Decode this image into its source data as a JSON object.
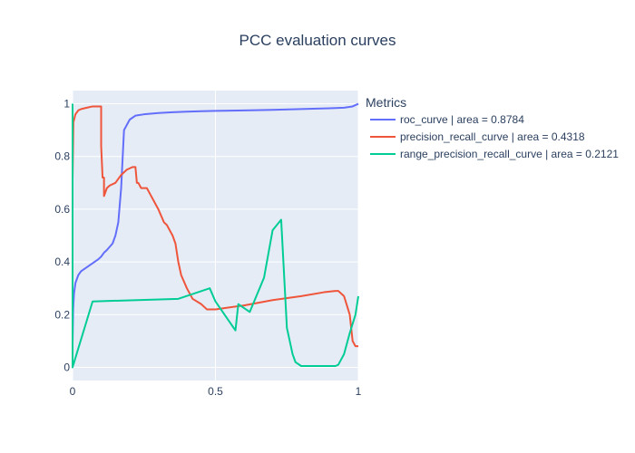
{
  "chart_data": {
    "type": "line",
    "title": "PCC evaluation curves",
    "xlabel": "",
    "ylabel": "",
    "xlim": [
      0,
      1
    ],
    "ylim": [
      -0.05,
      1.05
    ],
    "x_ticks": [
      0,
      0.5,
      1
    ],
    "x_tick_labels": [
      "0",
      "0.5",
      "1"
    ],
    "y_ticks": [
      0,
      0.2,
      0.4,
      0.6,
      0.8,
      1
    ],
    "y_tick_labels": [
      "0",
      "0.2",
      "0.4",
      "0.6",
      "0.8",
      "1"
    ],
    "grid": true,
    "legend_title": "Metrics",
    "legend_position": "top-right",
    "series": [
      {
        "name": "roc_curve | area = 0.8784",
        "color": "#636efa",
        "x": [
          0,
          0.002,
          0.005,
          0.01,
          0.02,
          0.03,
          0.05,
          0.07,
          0.09,
          0.1,
          0.11,
          0.12,
          0.14,
          0.15,
          0.16,
          0.17,
          0.18,
          0.2,
          0.22,
          0.25,
          0.3,
          0.35,
          0.4,
          0.45,
          0.5,
          0.6,
          0.7,
          0.8,
          0.9,
          0.95,
          0.98,
          1.0
        ],
        "y": [
          0.09,
          0.22,
          0.28,
          0.32,
          0.35,
          0.365,
          0.38,
          0.395,
          0.41,
          0.42,
          0.435,
          0.445,
          0.47,
          0.5,
          0.55,
          0.68,
          0.9,
          0.94,
          0.955,
          0.96,
          0.965,
          0.968,
          0.97,
          0.972,
          0.973,
          0.975,
          0.977,
          0.98,
          0.983,
          0.985,
          0.99,
          1.0
        ]
      },
      {
        "name": "precision_recall_curve | area = 0.4318",
        "color": "#ef553b",
        "x": [
          0,
          0.003,
          0.01,
          0.02,
          0.03,
          0.05,
          0.07,
          0.1,
          0.1,
          0.105,
          0.11,
          0.11,
          0.12,
          0.13,
          0.15,
          0.17,
          0.19,
          0.21,
          0.22,
          0.225,
          0.23,
          0.24,
          0.26,
          0.27,
          0.28,
          0.29,
          0.3,
          0.32,
          0.33,
          0.35,
          0.36,
          0.37,
          0.38,
          0.4,
          0.42,
          0.45,
          0.47,
          0.5,
          0.6,
          0.7,
          0.8,
          0.88,
          0.92,
          0.93,
          0.95,
          0.97,
          0.98,
          0.99,
          1.0
        ],
        "y": [
          0.71,
          0.93,
          0.96,
          0.975,
          0.98,
          0.985,
          0.99,
          0.99,
          0.84,
          0.72,
          0.72,
          0.65,
          0.68,
          0.69,
          0.7,
          0.73,
          0.75,
          0.76,
          0.76,
          0.7,
          0.7,
          0.68,
          0.68,
          0.66,
          0.64,
          0.62,
          0.6,
          0.55,
          0.54,
          0.5,
          0.47,
          0.4,
          0.35,
          0.3,
          0.26,
          0.24,
          0.22,
          0.22,
          0.235,
          0.255,
          0.27,
          0.285,
          0.29,
          0.29,
          0.27,
          0.2,
          0.1,
          0.08,
          0.08
        ]
      },
      {
        "name": "range_precision_recall_curve | area = 0.2121",
        "color": "#00cc96",
        "x": [
          0,
          0,
          0.07,
          0.37,
          0.48,
          0.5,
          0.57,
          0.58,
          0.62,
          0.67,
          0.7,
          0.73,
          0.75,
          0.77,
          0.78,
          0.8,
          0.84,
          0.92,
          0.93,
          0.95,
          0.97,
          0.99,
          1.0
        ],
        "y": [
          1.0,
          0,
          0.25,
          0.26,
          0.3,
          0.25,
          0.14,
          0.24,
          0.21,
          0.34,
          0.52,
          0.56,
          0.15,
          0.05,
          0.02,
          0.005,
          0.005,
          0.005,
          0.01,
          0.05,
          0.13,
          0.2,
          0.27
        ]
      }
    ]
  }
}
